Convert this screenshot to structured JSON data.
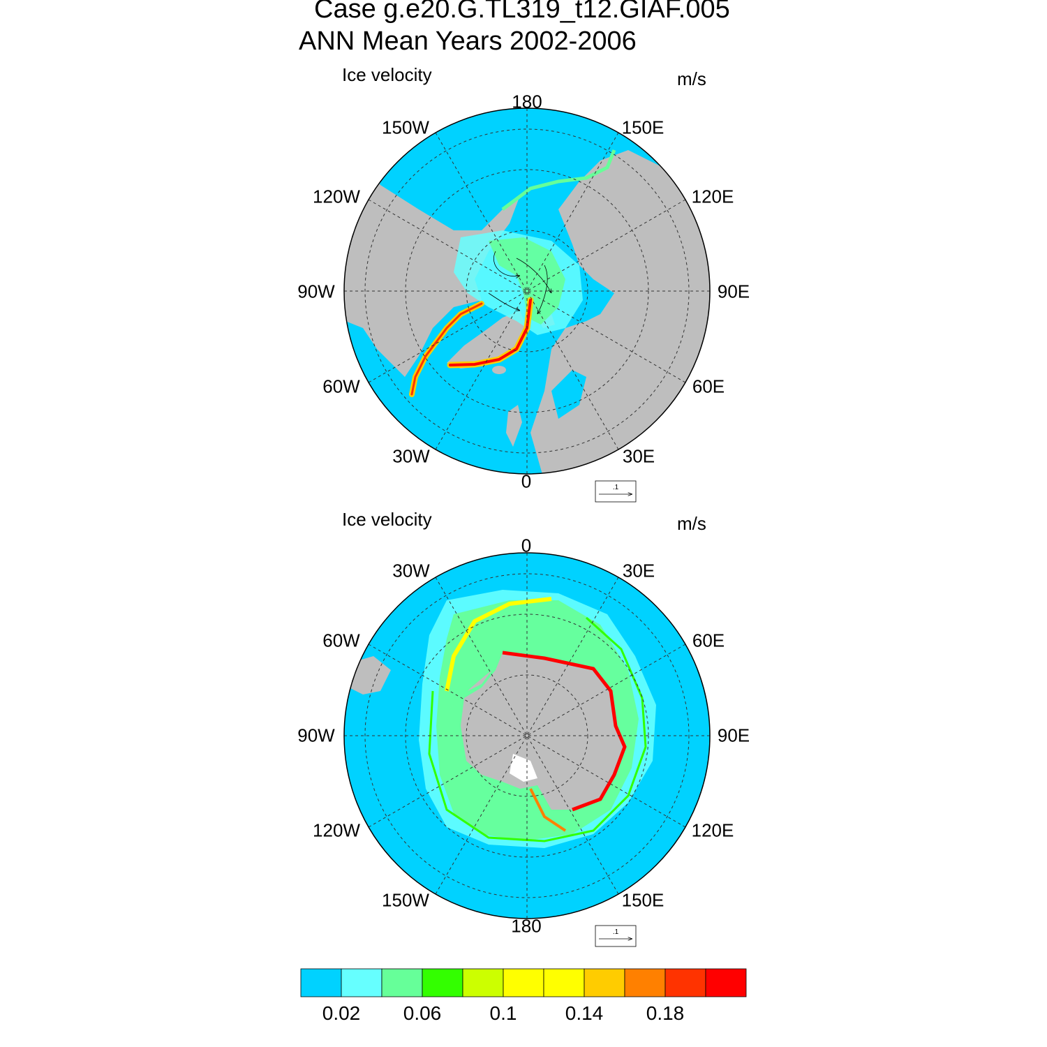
{
  "title": {
    "line1": "Case g.e20.G.TL319_t12.GIAF.005",
    "line2": "ANN Mean   Years 2002-2006"
  },
  "panels": [
    {
      "id": "north",
      "title": "Ice velocity",
      "units": "m/s",
      "lon_labels": {
        "top": "180",
        "bottom": "0",
        "l150": "150W",
        "r150": "150E",
        "l120": "120W",
        "r120": "120E",
        "l90": "90W",
        "r90": "90E",
        "l60": "60W",
        "r60": "60E",
        "l30": "30W",
        "r30": "30E"
      },
      "ref_vector": ".1"
    },
    {
      "id": "south",
      "title": "Ice velocity",
      "units": "m/s",
      "lon_labels": {
        "top": "0",
        "bottom": "180",
        "l150": "30W",
        "r150": "30E",
        "l120": "60W",
        "r120": "60E",
        "l90": "90W",
        "r90": "90E",
        "l60": "120W",
        "r60": "120E",
        "l30": "150W",
        "r30": "150E"
      },
      "ref_vector": ".1"
    }
  ],
  "colorbar": {
    "colors": [
      "#00d2ff",
      "#66ffff",
      "#66ff99",
      "#33ff00",
      "#ccff00",
      "#ffff00",
      "#ffff00",
      "#ffcc00",
      "#ff8000",
      "#ff3300",
      "#ff0000"
    ],
    "labels": [
      "0.02",
      "0.06",
      "0.1",
      "0.14",
      "0.18"
    ]
  },
  "colors": {
    "ocean": "#00d2ff",
    "land": "#bebebe",
    "fast_ice": "#ff0000",
    "mid_ice": "#66ff99"
  }
}
